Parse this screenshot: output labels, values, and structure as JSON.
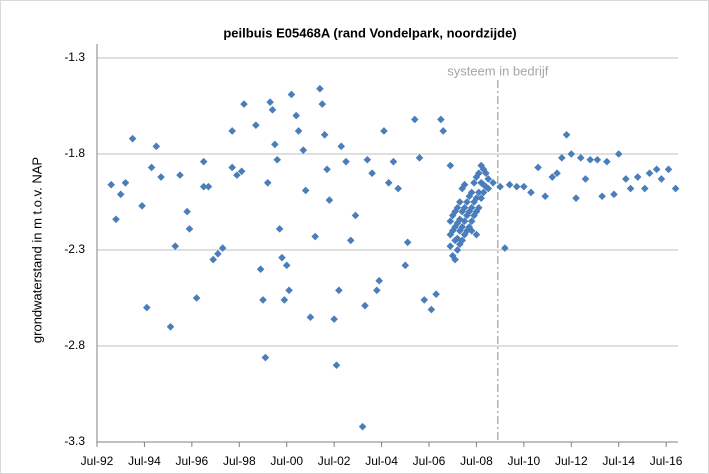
{
  "chart_data": {
    "type": "scatter",
    "title": "peilbuis E05468A (rand Vondelpark, noordzijde)",
    "y_label": "grondwaterstand in m t.o.v. NAP",
    "color": "#4a7ebb",
    "grid": true,
    "xlim": [
      1992.5,
      2017
    ],
    "ylim": [
      -3.3,
      -1.3
    ],
    "yticks": [
      -1.3,
      -1.8,
      -2.3,
      -2.8,
      -3.3
    ],
    "xticks": [
      {
        "value": 1992.5,
        "label": "Jul-92"
      },
      {
        "value": 1994.5,
        "label": "Jul-94"
      },
      {
        "value": 1996.5,
        "label": "Jul-96"
      },
      {
        "value": 1998.5,
        "label": "Jul-98"
      },
      {
        "value": 2000.5,
        "label": "Jul-00"
      },
      {
        "value": 2002.5,
        "label": "Jul-02"
      },
      {
        "value": 2004.5,
        "label": "Jul-04"
      },
      {
        "value": 2006.5,
        "label": "Jul-06"
      },
      {
        "value": 2008.5,
        "label": "Jul-08"
      },
      {
        "value": 2010.5,
        "label": "Jul-10"
      },
      {
        "value": 2012.5,
        "label": "Jul-12"
      },
      {
        "value": 2014.5,
        "label": "Jul-14"
      },
      {
        "value": 2016.5,
        "label": "Jul-16"
      }
    ],
    "annotation": {
      "text": "systeem in bedrijf",
      "x": 2009.4
    },
    "x": [
      1993.1,
      1993.3,
      1993.5,
      1993.7,
      1994.0,
      1994.4,
      1994.6,
      1994.8,
      1995.0,
      1995.2,
      1995.6,
      1995.8,
      1996.0,
      1996.3,
      1996.4,
      1996.7,
      1997.0,
      1997.0,
      1997.2,
      1997.4,
      1997.6,
      1997.8,
      1998.2,
      1998.2,
      1998.4,
      1998.6,
      1998.7,
      1999.2,
      1999.4,
      1999.5,
      1999.6,
      1999.7,
      1999.8,
      1999.9,
      2000.0,
      2000.1,
      2000.2,
      2000.3,
      2000.4,
      2000.5,
      2000.6,
      2000.7,
      2000.9,
      2001.0,
      2001.2,
      2001.3,
      2001.5,
      2001.7,
      2001.9,
      2002.0,
      2002.1,
      2002.2,
      2002.3,
      2002.5,
      2002.7,
      2002.8,
      2003.0,
      2003.2,
      2003.4,
      2003.7,
      2003.8,
      2003.9,
      2004.1,
      2004.3,
      2004.4,
      2004.6,
      2004.8,
      2005.0,
      2005.2,
      2005.5,
      2005.6,
      2005.9,
      2006.1,
      2006.3,
      2006.6,
      2006.8,
      2007.0,
      2007.1,
      2007.4,
      2002.6,
      2007.4,
      2007.4,
      2007.4,
      2007.5,
      2007.5,
      2007.5,
      2007.6,
      2007.6,
      2007.6,
      2007.6,
      2007.7,
      2007.7,
      2007.7,
      2007.7,
      2007.8,
      2007.8,
      2007.8,
      2007.8,
      2007.9,
      2007.9,
      2007.9,
      2007.9,
      2008.0,
      2008.0,
      2008.0,
      2008.0,
      2008.1,
      2008.1,
      2008.1,
      2008.2,
      2008.2,
      2008.2,
      2008.3,
      2008.3,
      2008.3,
      2008.3,
      2008.4,
      2008.4,
      2008.4,
      2008.5,
      2008.5,
      2008.5,
      2008.5,
      2008.6,
      2008.6,
      2008.6,
      2008.7,
      2008.7,
      2008.7,
      2008.8,
      2008.8,
      2008.8,
      2008.9,
      2008.9,
      2009.0,
      2009.0,
      2009.2,
      2009.5,
      2009.7,
      2009.9,
      2010.2,
      2010.5,
      2010.8,
      2011.1,
      2011.4,
      2011.7,
      2011.9,
      2012.1,
      2012.3,
      2012.5,
      2012.7,
      2012.9,
      2013.1,
      2013.3,
      2013.6,
      2013.8,
      2014.0,
      2014.3,
      2014.5,
      2014.8,
      2015.0,
      2015.3,
      2015.6,
      2015.8,
      2016.1,
      2016.3,
      2016.6,
      2016.9
    ],
    "values": [
      -1.96,
      -2.14,
      -2.01,
      -1.95,
      -1.72,
      -2.07,
      -2.6,
      -1.87,
      -1.76,
      -1.92,
      -2.7,
      -2.28,
      -1.91,
      -2.1,
      -2.19,
      -2.55,
      -1.84,
      -1.97,
      -1.97,
      -2.35,
      -2.32,
      -2.29,
      -1.68,
      -1.87,
      -1.91,
      -1.89,
      -1.54,
      -1.65,
      -2.4,
      -2.56,
      -2.86,
      -1.95,
      -1.53,
      -1.57,
      -1.75,
      -1.83,
      -2.19,
      -2.34,
      -2.56,
      -2.38,
      -2.51,
      -1.49,
      -1.6,
      -1.68,
      -1.78,
      -1.99,
      -2.65,
      -2.23,
      -1.46,
      -1.54,
      -1.7,
      -1.88,
      -2.04,
      -2.66,
      -2.51,
      -1.76,
      -1.84,
      -2.25,
      -2.12,
      -3.22,
      -2.59,
      -1.83,
      -1.9,
      -2.51,
      -2.46,
      -1.68,
      -1.95,
      -1.84,
      -1.98,
      -2.38,
      -2.26,
      -1.62,
      -1.82,
      -2.56,
      -2.61,
      -2.53,
      -1.62,
      -1.68,
      -1.86,
      -2.9,
      -2.15,
      -2.22,
      -2.28,
      -2.12,
      -2.2,
      -2.33,
      -2.1,
      -2.18,
      -2.25,
      -2.35,
      -2.08,
      -2.16,
      -2.24,
      -2.3,
      -2.05,
      -2.14,
      -2.2,
      -2.27,
      -1.98,
      -2.1,
      -2.18,
      -2.25,
      -1.96,
      -2.08,
      -2.15,
      -2.22,
      -2.05,
      -2.12,
      -2.2,
      -2.02,
      -2.1,
      -2.18,
      -2.0,
      -2.08,
      -2.15,
      -2.2,
      -1.95,
      -2.05,
      -2.12,
      -1.92,
      -2.03,
      -2.1,
      -2.22,
      -1.9,
      -2.0,
      -2.08,
      -1.86,
      -1.95,
      -2.03,
      -1.88,
      -1.96,
      -2.0,
      -1.9,
      -1.97,
      -1.93,
      -1.98,
      -1.95,
      -1.97,
      -2.29,
      -1.96,
      -1.97,
      -1.97,
      -2.0,
      -1.87,
      -2.02,
      -1.92,
      -1.9,
      -1.82,
      -1.7,
      -1.8,
      -2.03,
      -1.82,
      -1.93,
      -1.83,
      -1.83,
      -2.02,
      -1.84,
      -2.01,
      -1.8,
      -1.93,
      -1.98,
      -1.92,
      -1.98,
      -1.9,
      -1.88,
      -1.93,
      -1.88,
      -1.98
    ]
  }
}
